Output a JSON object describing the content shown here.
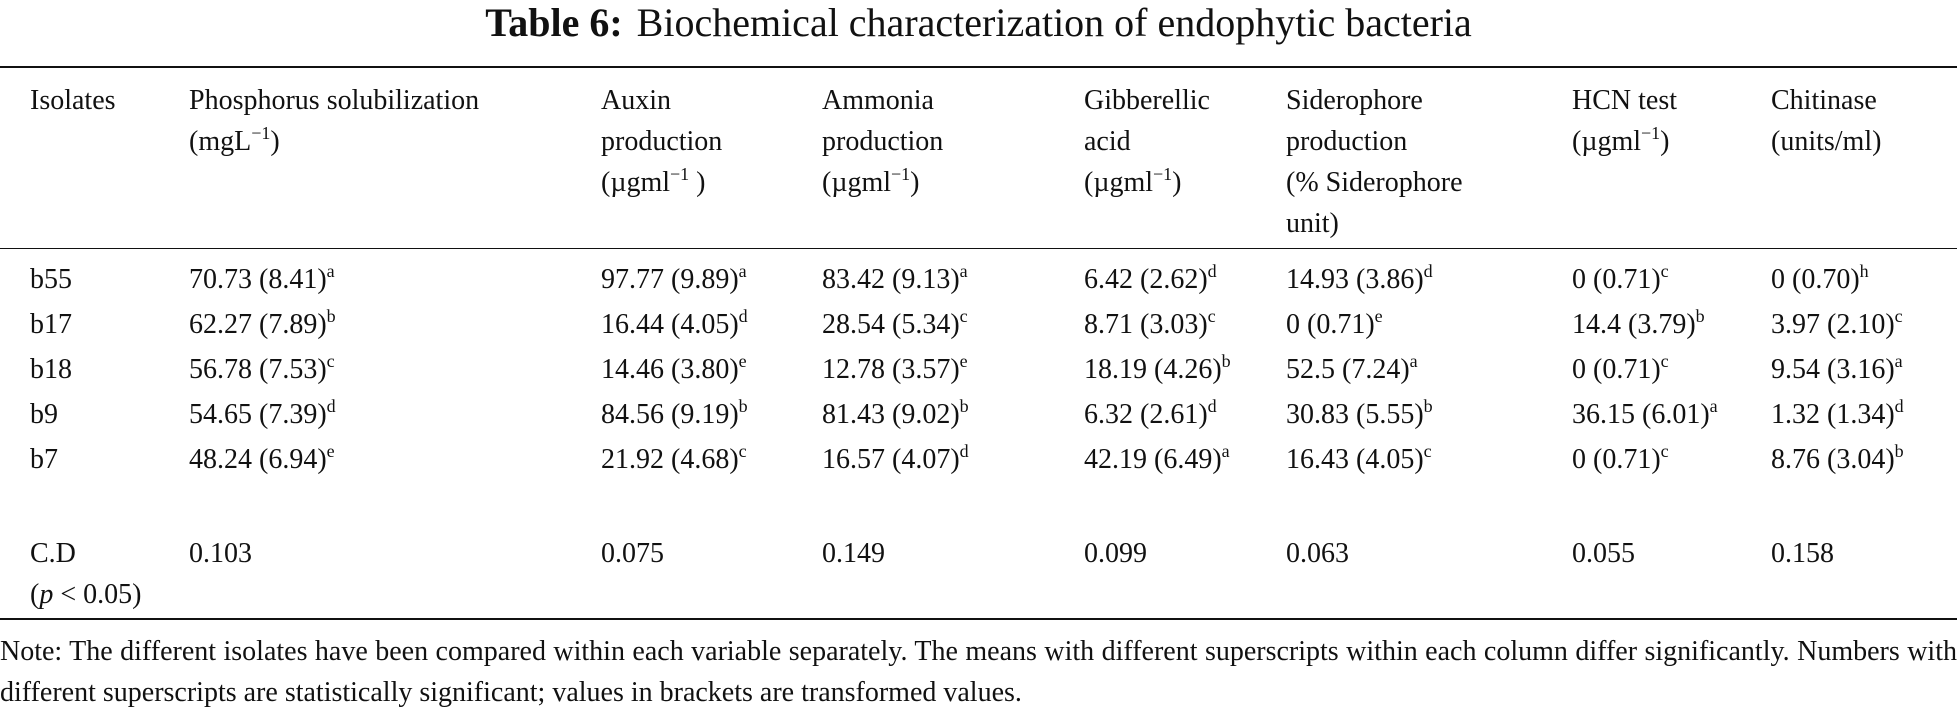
{
  "table": {
    "label": "Table 6:",
    "title": "Biochemical characterization of endophytic bacteria",
    "headers": [
      [
        "Isolates"
      ],
      [
        "Phosphorus solubilization",
        "(mgL",
        "−1",
        ")"
      ],
      [
        "Auxin",
        "production",
        "(µgml",
        "−1",
        " )"
      ],
      [
        "Ammonia",
        "production",
        "(µgml",
        "−1",
        ")"
      ],
      [
        "Gibberellic",
        "acid",
        "(µgml",
        "−1",
        ")"
      ],
      [
        "Siderophore",
        "production",
        "(% Siderophore",
        "unit)"
      ],
      [
        "HCN test",
        "(µgml",
        "−1",
        ")"
      ],
      [
        "Chitinase",
        "(units/ml)"
      ]
    ],
    "rows": [
      {
        "isolate": "b55",
        "cells": [
          [
            "70.73 (8.41)",
            "a"
          ],
          [
            "97.77 (9.89)",
            "a"
          ],
          [
            "83.42 (9.13)",
            "a"
          ],
          [
            "6.42 (2.62)",
            "d"
          ],
          [
            "14.93 (3.86)",
            "d"
          ],
          [
            "0 (0.71)",
            "c"
          ],
          [
            "0 (0.70)",
            "h"
          ]
        ]
      },
      {
        "isolate": "b17",
        "cells": [
          [
            "62.27 (7.89)",
            "b"
          ],
          [
            "16.44 (4.05)",
            "d"
          ],
          [
            "28.54 (5.34)",
            "c"
          ],
          [
            "8.71 (3.03)",
            "c"
          ],
          [
            "0 (0.71)",
            "e"
          ],
          [
            "14.4 (3.79)",
            "b"
          ],
          [
            "3.97 (2.10)",
            "c"
          ]
        ]
      },
      {
        "isolate": "b18",
        "cells": [
          [
            "56.78 (7.53)",
            "c"
          ],
          [
            "14.46 (3.80)",
            "e"
          ],
          [
            "12.78 (3.57)",
            "e"
          ],
          [
            "18.19 (4.26)",
            "b"
          ],
          [
            "52.5 (7.24)",
            "a"
          ],
          [
            "0 (0.71)",
            "c"
          ],
          [
            "9.54 (3.16)",
            "a"
          ]
        ]
      },
      {
        "isolate": "b9",
        "cells": [
          [
            "54.65 (7.39)",
            "d"
          ],
          [
            "84.56 (9.19)",
            "b"
          ],
          [
            "81.43 (9.02)",
            "b"
          ],
          [
            "6.32 (2.61)",
            "d"
          ],
          [
            "30.83 (5.55)",
            "b"
          ],
          [
            "36.15 (6.01)",
            "a"
          ],
          [
            "1.32 (1.34)",
            "d"
          ]
        ]
      },
      {
        "isolate": "b7",
        "cells": [
          [
            "48.24 (6.94)",
            "e"
          ],
          [
            "21.92 (4.68)",
            "c"
          ],
          [
            "16.57 (4.07)",
            "d"
          ],
          [
            "42.19 (6.49)",
            "a"
          ],
          [
            "16.43 (4.05)",
            "c"
          ],
          [
            "0 (0.71)",
            "c"
          ],
          [
            "8.76 (3.04)",
            "b"
          ]
        ]
      }
    ],
    "cd_row": {
      "label": "C.D",
      "p_prefix": "(",
      "p_italic": "p",
      "p_suffix": " < 0.05)",
      "values": [
        "0.103",
        "0.075",
        "0.149",
        "0.099",
        "0.063",
        "0.055",
        "0.158"
      ]
    },
    "note": "Note: The different isolates have been compared within each variable separately. The means with different superscripts within each column differ significantly. Numbers with different superscripts are statistically significant; values in brackets are transformed values."
  }
}
